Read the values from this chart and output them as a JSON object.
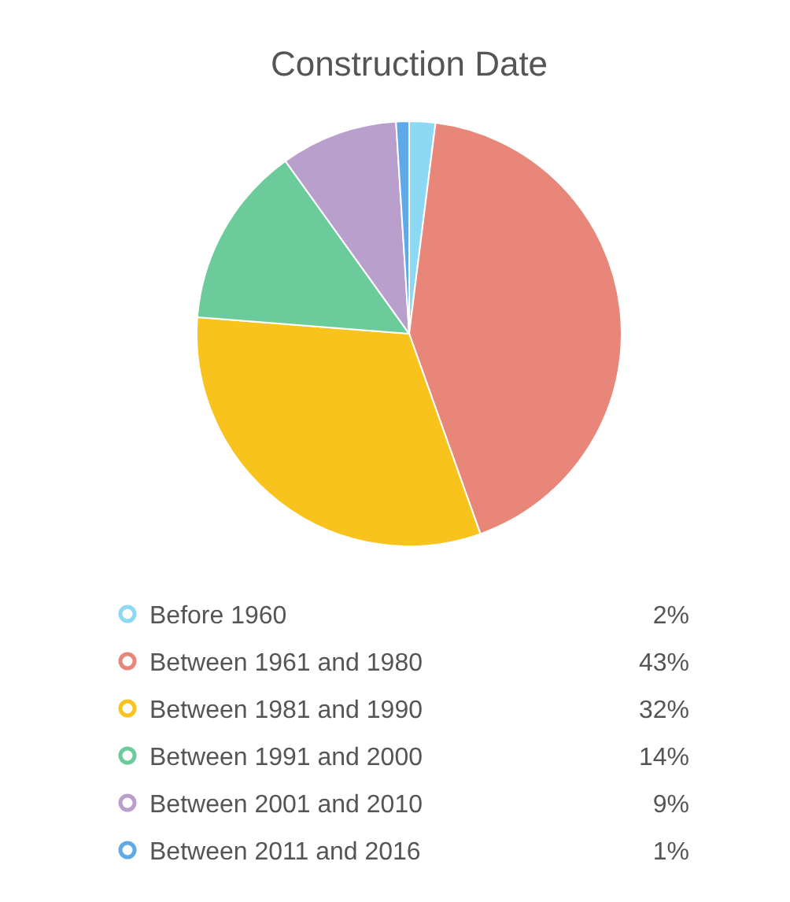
{
  "chart_data": {
    "type": "pie",
    "title": "Construction Date",
    "categories": [
      "Before 1960",
      "Between 1961 and 1980",
      "Between 1981 and 1990",
      "Between 1991 and 2000",
      "Between 2001 and 2010",
      "Between 2011 and 2016"
    ],
    "values": [
      2,
      43,
      32,
      14,
      9,
      1
    ],
    "colors": [
      "#8dd8f2",
      "#e8867a",
      "#f8c31c",
      "#6ccb9a",
      "#b99fcc",
      "#5ea9e6"
    ],
    "value_labels": [
      "2%",
      "43%",
      "32%",
      "14%",
      "9%",
      "1%"
    ],
    "legend": "bottom"
  }
}
